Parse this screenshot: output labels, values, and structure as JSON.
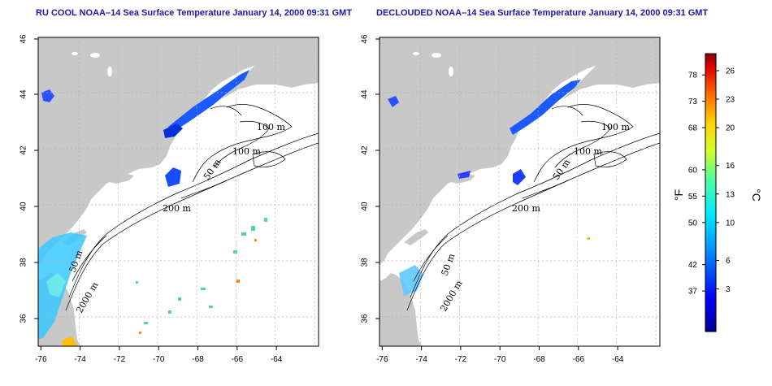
{
  "maps": {
    "left": {
      "title": "RU COOL NOAA–14 Sea Surface Temperature January 14, 2000 09:31 GMT"
    },
    "right": {
      "title": "DECLOUDED NOAA–14 Sea Surface Temperature January 14, 2000 09:31 GMT"
    }
  },
  "axes": {
    "lon_ticks": [
      "-76",
      "-74",
      "-72",
      "-70",
      "-68",
      "-66",
      "-64"
    ],
    "lat_ticks": [
      "46",
      "44",
      "42",
      "40",
      "38",
      "36"
    ]
  },
  "contours": {
    "left": [
      "100 m",
      "100 m",
      "50 m",
      "200 m",
      "50 m",
      "2000 m"
    ],
    "right": [
      "100 m",
      "100 m",
      "50 m",
      "200 m",
      "50 m",
      "2000 m"
    ]
  },
  "colorbar": {
    "fahrenheit_ticks": [
      "78",
      "73",
      "68",
      "60",
      "55",
      "50",
      "42",
      "37"
    ],
    "celsius_ticks": [
      "26",
      "23",
      "20",
      "16",
      "13",
      "10",
      "6",
      "3"
    ],
    "fahrenheit_label": "°F",
    "celsius_label": "°C"
  }
}
